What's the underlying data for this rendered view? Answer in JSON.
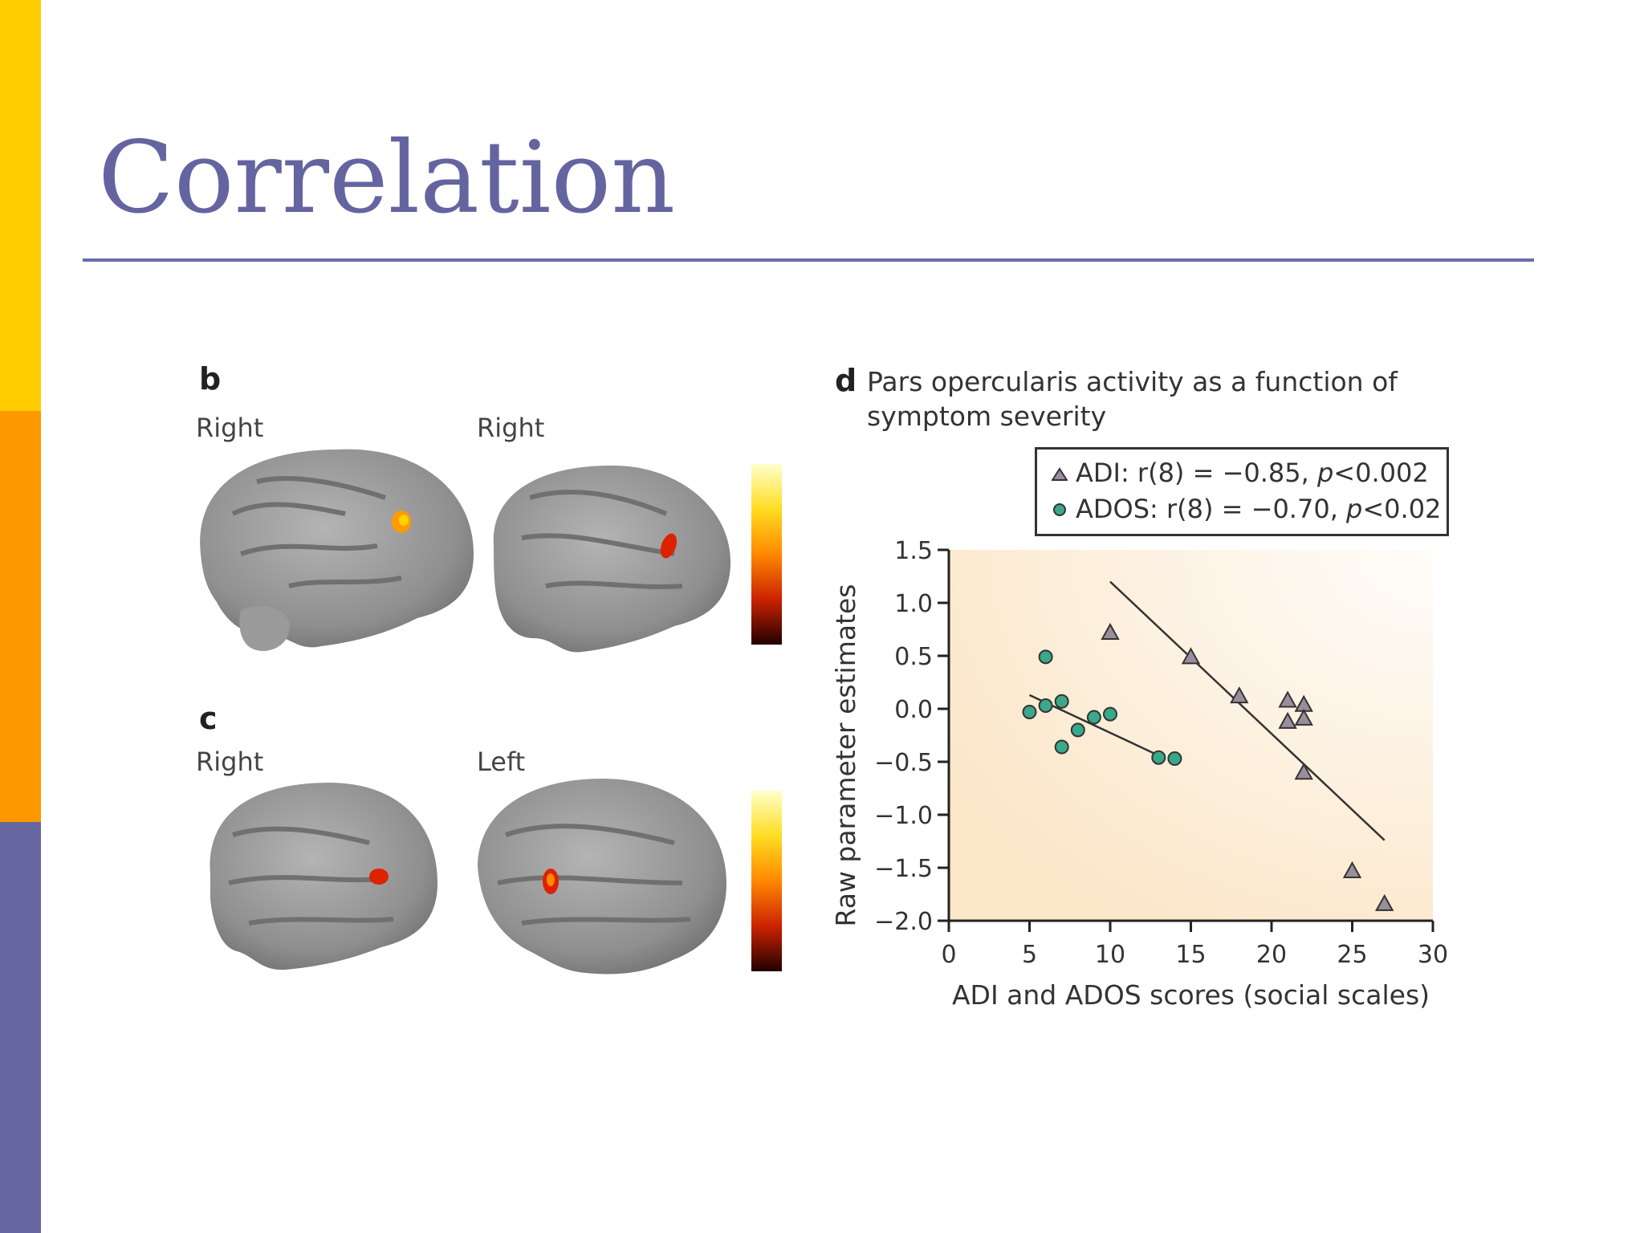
{
  "slide": {
    "title": "Correlation",
    "side_bar_colors": [
      "#ffcc00",
      "#ff9900",
      "#6666a0"
    ],
    "accent_color": "#6464a0"
  },
  "figure": {
    "panel_b": {
      "letter": "b",
      "labels": [
        "Right",
        "Right"
      ]
    },
    "panel_c": {
      "letter": "c",
      "labels": [
        "Right",
        "Left"
      ]
    },
    "panel_d": {
      "letter": "d",
      "title_line1": "Pars opercularis activity as a function of",
      "title_line2": "symptom severity"
    }
  },
  "chart_data": {
    "type": "scatter",
    "title": "Pars opercularis activity as a function of symptom severity",
    "xlabel": "ADI and ADOS scores (social scales)",
    "ylabel": "Raw parameter estimates",
    "xlim": [
      0,
      30
    ],
    "ylim": [
      -2.0,
      1.5
    ],
    "x_ticks": [
      0,
      5,
      10,
      15,
      20,
      25,
      30
    ],
    "y_ticks": [
      1.5,
      1.0,
      0.5,
      0.0,
      -0.5,
      -1.0,
      -1.5,
      -2.0
    ],
    "y_tick_labels": [
      "1.5",
      "1.0",
      "0.5",
      "0.0",
      "−0.5",
      "−1.0",
      "−1.5",
      "−2.0"
    ],
    "grid": false,
    "legend_position": "top",
    "series": [
      {
        "name": "ADI",
        "legend_stat": "r(8) = −0.85,",
        "legend_p": "p",
        "legend_p_value": "<0.002",
        "marker": "triangle",
        "color": "#9a8e9c",
        "points": [
          [
            10,
            0.72
          ],
          [
            15,
            0.49
          ],
          [
            18,
            0.12
          ],
          [
            21,
            0.08
          ],
          [
            21,
            -0.12
          ],
          [
            22,
            0.04
          ],
          [
            22,
            -0.09
          ],
          [
            22,
            -0.6
          ],
          [
            25,
            -1.53
          ],
          [
            27,
            -1.84
          ]
        ],
        "fit_line": [
          [
            10,
            1.2
          ],
          [
            27,
            -1.24
          ]
        ]
      },
      {
        "name": "ADOS",
        "legend_stat": "r(8) = −0.70,",
        "legend_p": "p",
        "legend_p_value": "<0.02",
        "marker": "circle",
        "color": "#3aa88a",
        "points": [
          [
            5,
            -0.03
          ],
          [
            6,
            0.49
          ],
          [
            6,
            0.03
          ],
          [
            7,
            0.07
          ],
          [
            7,
            -0.36
          ],
          [
            8,
            -0.2
          ],
          [
            9,
            -0.08
          ],
          [
            10,
            -0.05
          ],
          [
            13,
            -0.46
          ],
          [
            14,
            -0.47
          ]
        ],
        "fit_line": [
          [
            5,
            0.13
          ],
          [
            13,
            -0.44
          ]
        ]
      }
    ]
  }
}
